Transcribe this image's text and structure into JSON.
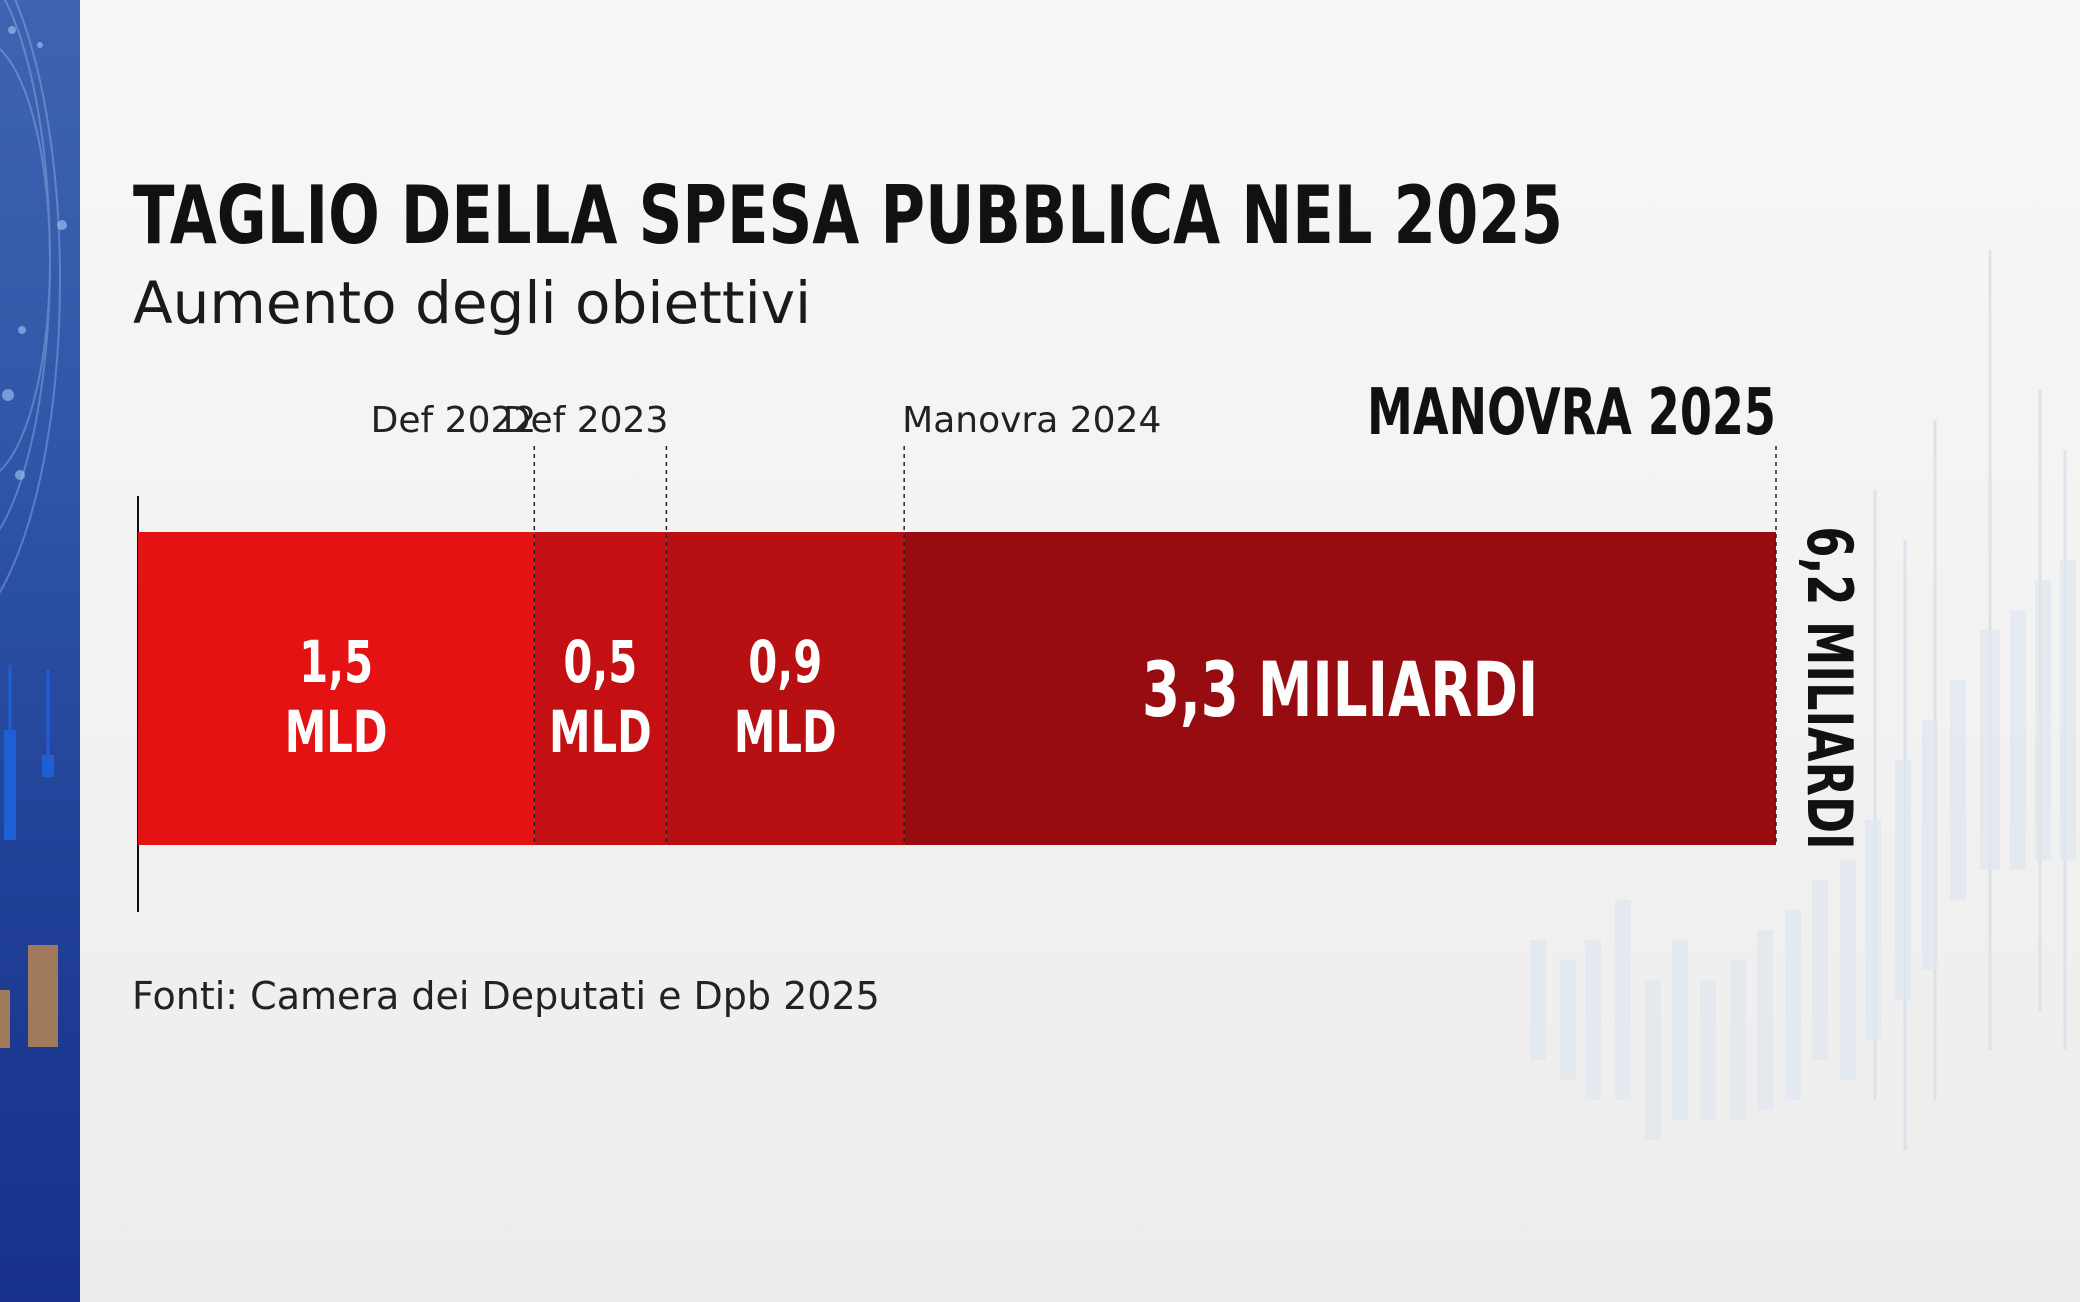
{
  "header": {
    "title": "TAGLIO DELLA SPESA PUBBLICA NEL 2025",
    "subtitle": "Aumento degli obiettivi"
  },
  "source": "Fonti: Camera dei Deputati e Dpb 2025",
  "colors": {
    "seg1": "#e41212",
    "seg2": "#c51013",
    "seg3": "#b70f12",
    "seg4": "#970c10",
    "text_dark": "#111111",
    "label_light": "#ffffff"
  },
  "chart_data": {
    "type": "bar",
    "orientation": "horizontal-stacked",
    "unit": "miliardi",
    "segments": [
      {
        "milestone": "",
        "value": 1.5,
        "label_line1": "1,5",
        "label_line2": "MLD"
      },
      {
        "milestone": "Def 2022",
        "value": 0.5,
        "label_line1": "0,5",
        "label_line2": "MLD"
      },
      {
        "milestone": "Def 2023",
        "value": 0.9,
        "label_line1": "0,9",
        "label_line2": "MLD"
      },
      {
        "milestone": "Manovra 2024",
        "value": 3.3,
        "label_line1": "3,3 MILIARDI",
        "label_line2": ""
      }
    ],
    "total": {
      "value": 6.2,
      "label": "6,2 MILIARDI",
      "milestone": "MANOVRA 2025"
    }
  }
}
